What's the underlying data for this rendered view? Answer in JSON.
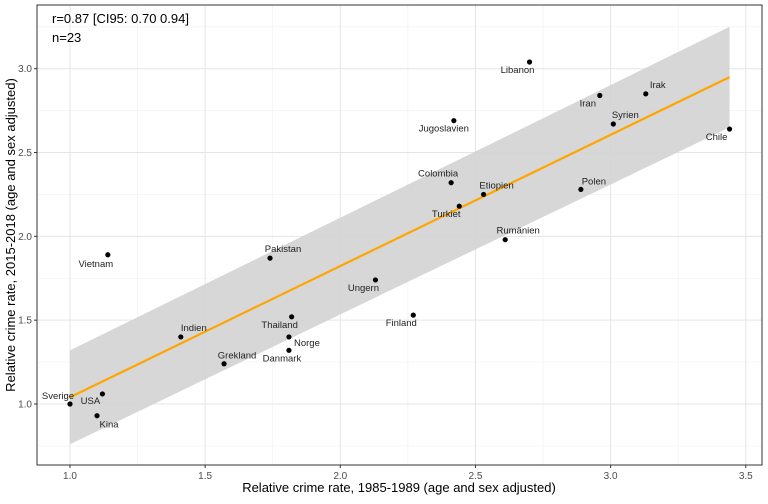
{
  "chart_data": {
    "type": "scatter",
    "xlabel": "Relative crime rate, 1985-1989 (age and sex adjusted)",
    "ylabel": "Relative crime rate, 2015-2018 (age and sex adjusted)",
    "xlim": [
      0.878,
      3.56
    ],
    "ylim": [
      0.636,
      3.38
    ],
    "x_ticks": [
      1.0,
      1.5,
      2.0,
      2.5,
      3.0,
      3.5
    ],
    "x_tick_labels": [
      "1.0",
      "1.5",
      "2.0",
      "2.5",
      "3.0",
      "3.5"
    ],
    "y_ticks": [
      1.0,
      1.5,
      2.0,
      2.5,
      3.0
    ],
    "y_tick_labels": [
      "1.0",
      "1.5",
      "2.0",
      "2.5",
      "3.0"
    ],
    "grid": true,
    "annotations": [
      "r=0.87 [CI95: 0.70 0.94]",
      "n=23"
    ],
    "points": [
      {
        "label": "Sverige",
        "x": 1.0,
        "y": 1.0
      },
      {
        "label": "USA",
        "x": 1.12,
        "y": 1.06
      },
      {
        "label": "Kina",
        "x": 1.1,
        "y": 0.93
      },
      {
        "label": "Vietnam",
        "x": 1.14,
        "y": 1.89
      },
      {
        "label": "Indien",
        "x": 1.41,
        "y": 1.4
      },
      {
        "label": "Grekland",
        "x": 1.57,
        "y": 1.24
      },
      {
        "label": "Pakistan",
        "x": 1.74,
        "y": 1.87
      },
      {
        "label": "Thailand",
        "x": 1.82,
        "y": 1.52
      },
      {
        "label": "Norge",
        "x": 1.81,
        "y": 1.4
      },
      {
        "label": "Danmark",
        "x": 1.81,
        "y": 1.32
      },
      {
        "label": "Ungern",
        "x": 2.13,
        "y": 1.74
      },
      {
        "label": "Finland",
        "x": 2.27,
        "y": 1.53
      },
      {
        "label": "Colombia",
        "x": 2.41,
        "y": 2.32
      },
      {
        "label": "Turkiet",
        "x": 2.44,
        "y": 2.18
      },
      {
        "label": "Etiopien",
        "x": 2.53,
        "y": 2.25
      },
      {
        "label": "Jugoslavien",
        "x": 2.42,
        "y": 2.69
      },
      {
        "label": "Libanon",
        "x": 2.7,
        "y": 3.04
      },
      {
        "label": "Rumänien",
        "x": 2.61,
        "y": 1.98
      },
      {
        "label": "Polen",
        "x": 2.89,
        "y": 2.28
      },
      {
        "label": "Iran",
        "x": 2.96,
        "y": 2.84
      },
      {
        "label": "Irak",
        "x": 3.13,
        "y": 2.85
      },
      {
        "label": "Syrien",
        "x": 3.01,
        "y": 2.67
      },
      {
        "label": "Chile",
        "x": 3.44,
        "y": 2.64
      }
    ],
    "fit": {
      "type": "linear",
      "x": [
        1.0,
        3.44
      ],
      "y": [
        1.04,
        2.95
      ],
      "color": "#FFA500"
    },
    "confidence_band": {
      "x": [
        1.0,
        3.44
      ],
      "upper": [
        1.32,
        3.25
      ],
      "lower": [
        0.76,
        2.65
      ],
      "color": "#D3D3D3"
    }
  }
}
